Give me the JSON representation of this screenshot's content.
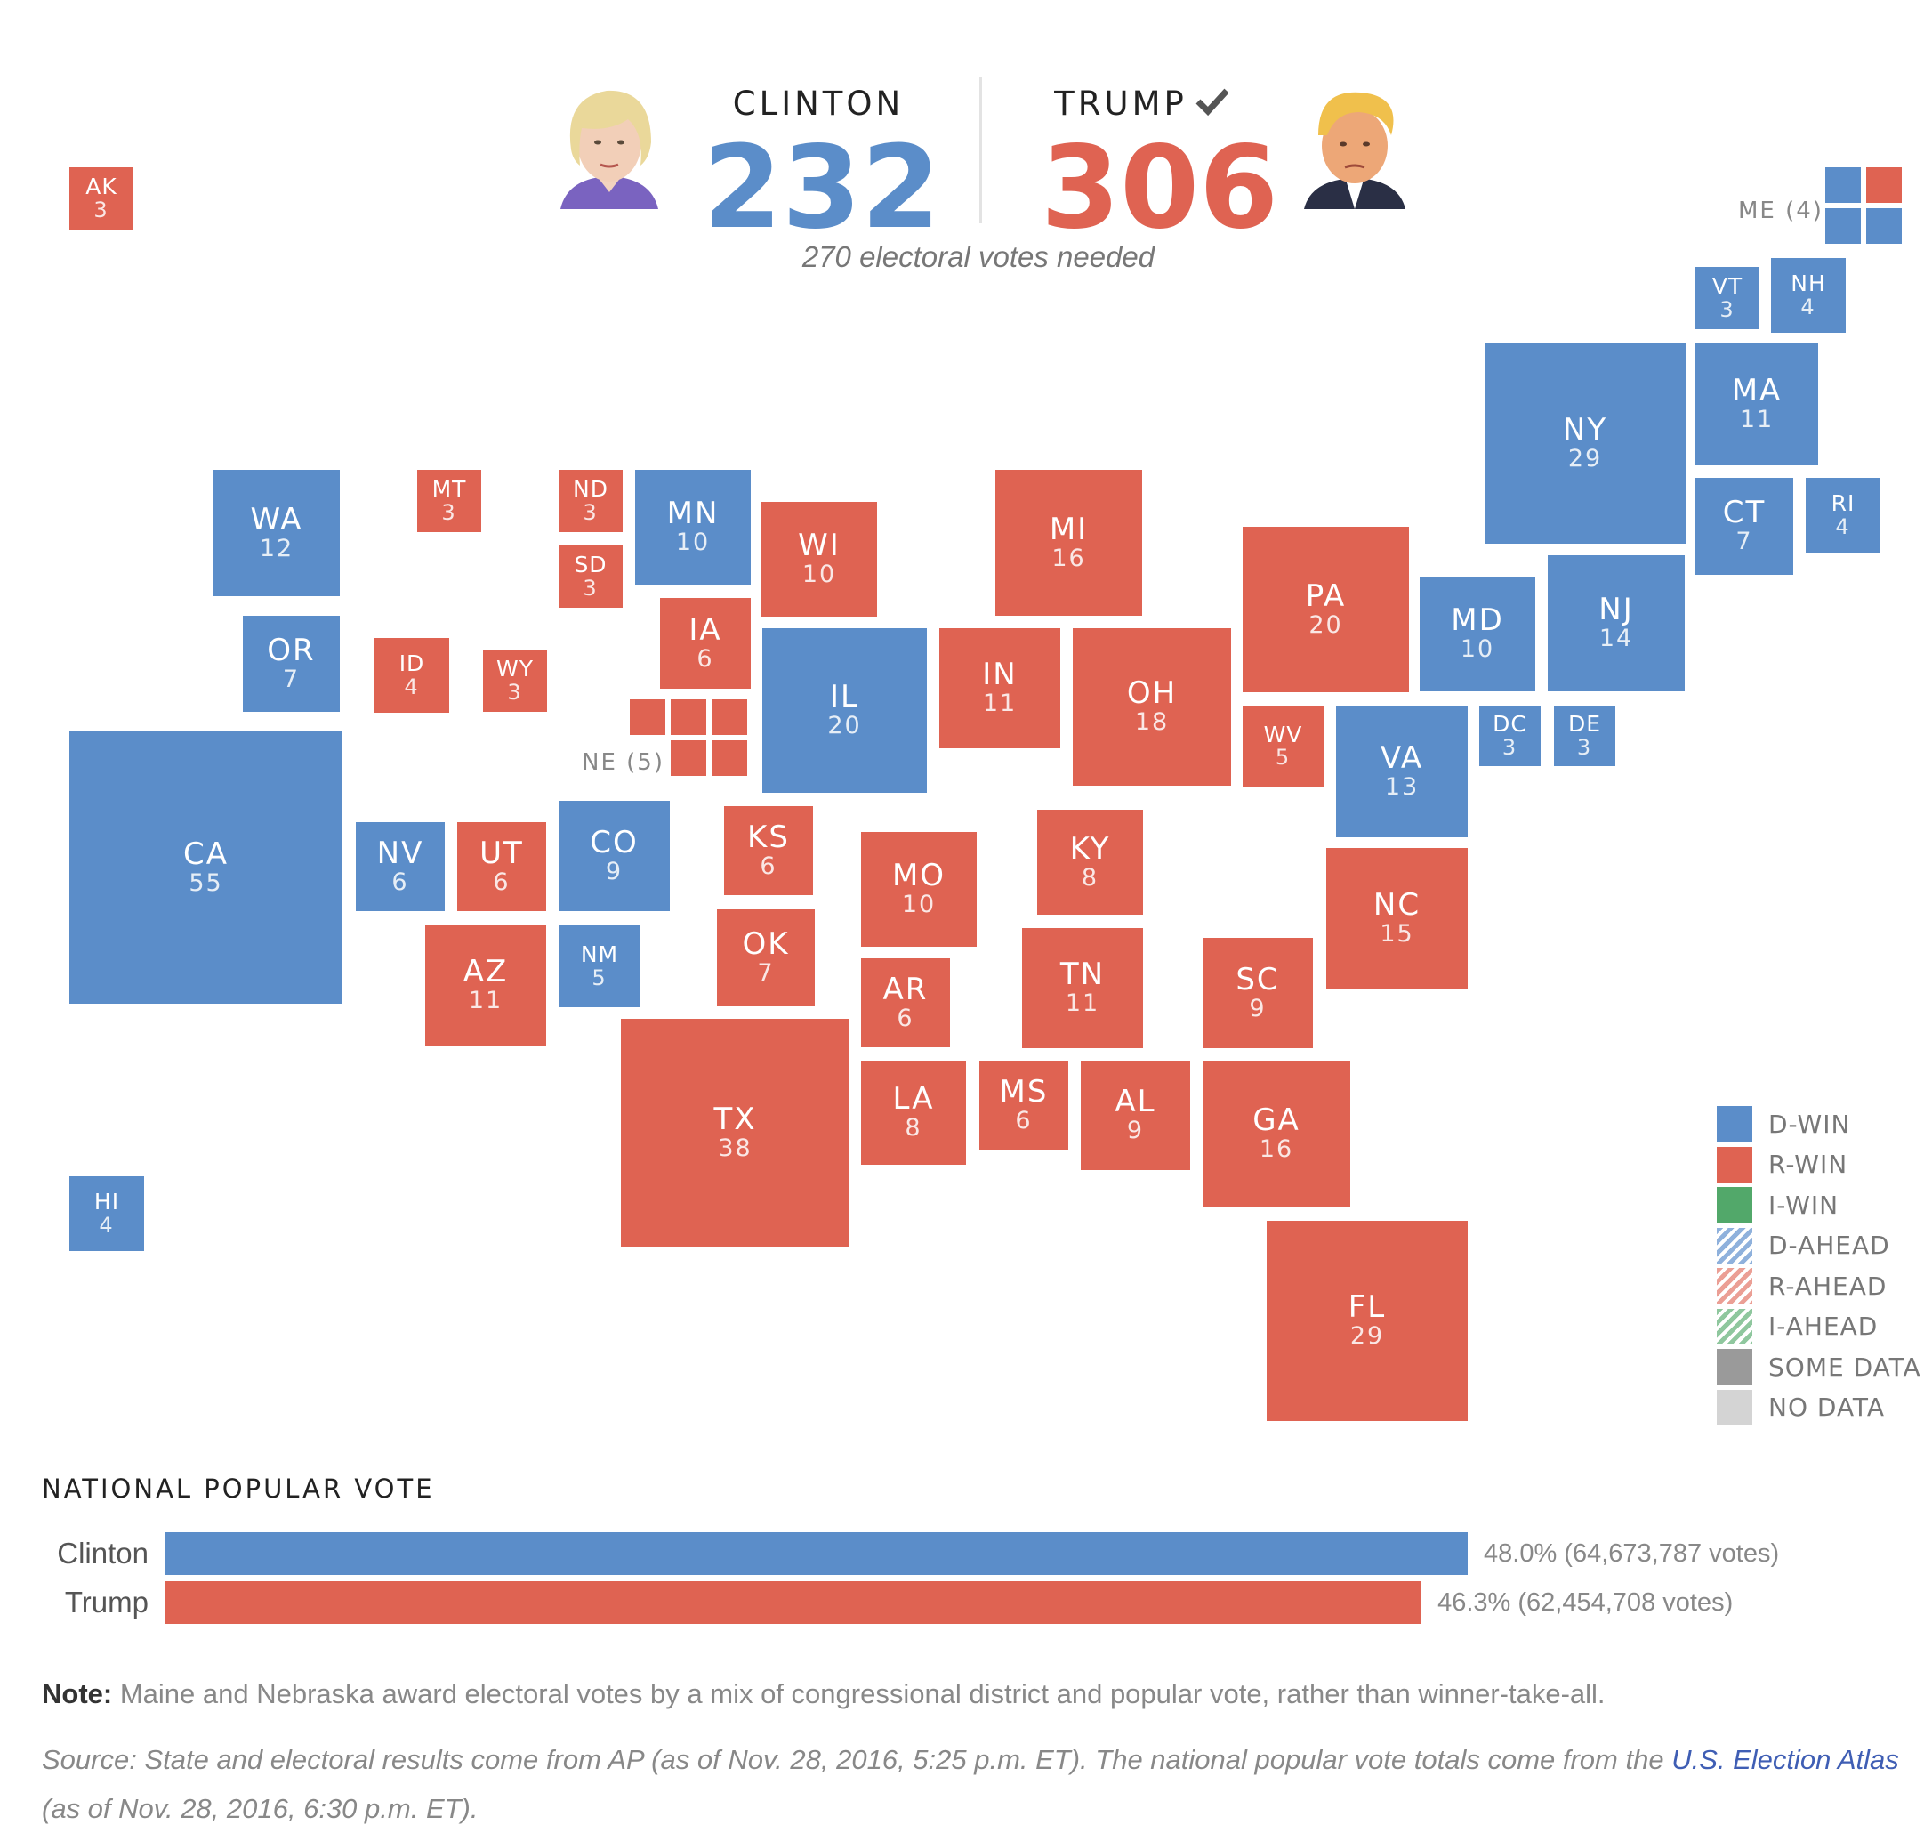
{
  "header": {
    "clinton": {
      "name": "CLINTON",
      "votes": "232"
    },
    "trump": {
      "name": "TRUMP",
      "votes": "306",
      "winner_icon": "check-icon"
    },
    "needed": "270 electoral votes needed"
  },
  "colors": {
    "d_win": "#5b8dc9",
    "r_win": "#df6352",
    "i_win": "#52a86a",
    "some_data": "#9a9a9a",
    "no_data": "#d4d4d4"
  },
  "states": [
    {
      "abbr": "AK",
      "ev": "3",
      "party": "r"
    },
    {
      "abbr": "HI",
      "ev": "4",
      "party": "d"
    },
    {
      "abbr": "WA",
      "ev": "12",
      "party": "d"
    },
    {
      "abbr": "OR",
      "ev": "7",
      "party": "d"
    },
    {
      "abbr": "CA",
      "ev": "55",
      "party": "d"
    },
    {
      "abbr": "MT",
      "ev": "3",
      "party": "r"
    },
    {
      "abbr": "ID",
      "ev": "4",
      "party": "r"
    },
    {
      "abbr": "WY",
      "ev": "3",
      "party": "r"
    },
    {
      "abbr": "NV",
      "ev": "6",
      "party": "d"
    },
    {
      "abbr": "UT",
      "ev": "6",
      "party": "r"
    },
    {
      "abbr": "AZ",
      "ev": "11",
      "party": "r"
    },
    {
      "abbr": "CO",
      "ev": "9",
      "party": "d"
    },
    {
      "abbr": "NM",
      "ev": "5",
      "party": "d"
    },
    {
      "abbr": "ND",
      "ev": "3",
      "party": "r"
    },
    {
      "abbr": "SD",
      "ev": "3",
      "party": "r"
    },
    {
      "abbr": "MN",
      "ev": "10",
      "party": "d"
    },
    {
      "abbr": "IA",
      "ev": "6",
      "party": "r"
    },
    {
      "abbr": "KS",
      "ev": "6",
      "party": "r"
    },
    {
      "abbr": "OK",
      "ev": "7",
      "party": "r"
    },
    {
      "abbr": "TX",
      "ev": "38",
      "party": "r"
    },
    {
      "abbr": "WI",
      "ev": "10",
      "party": "r"
    },
    {
      "abbr": "IL",
      "ev": "20",
      "party": "d"
    },
    {
      "abbr": "MO",
      "ev": "10",
      "party": "r"
    },
    {
      "abbr": "AR",
      "ev": "6",
      "party": "r"
    },
    {
      "abbr": "LA",
      "ev": "8",
      "party": "r"
    },
    {
      "abbr": "MI",
      "ev": "16",
      "party": "r"
    },
    {
      "abbr": "IN",
      "ev": "11",
      "party": "r"
    },
    {
      "abbr": "OH",
      "ev": "18",
      "party": "r"
    },
    {
      "abbr": "KY",
      "ev": "8",
      "party": "r"
    },
    {
      "abbr": "TN",
      "ev": "11",
      "party": "r"
    },
    {
      "abbr": "MS",
      "ev": "6",
      "party": "r"
    },
    {
      "abbr": "AL",
      "ev": "9",
      "party": "r"
    },
    {
      "abbr": "PA",
      "ev": "20",
      "party": "r"
    },
    {
      "abbr": "WV",
      "ev": "5",
      "party": "r"
    },
    {
      "abbr": "VA",
      "ev": "13",
      "party": "d"
    },
    {
      "abbr": "NC",
      "ev": "15",
      "party": "r"
    },
    {
      "abbr": "SC",
      "ev": "9",
      "party": "r"
    },
    {
      "abbr": "GA",
      "ev": "16",
      "party": "r"
    },
    {
      "abbr": "FL",
      "ev": "29",
      "party": "r"
    },
    {
      "abbr": "MD",
      "ev": "10",
      "party": "d"
    },
    {
      "abbr": "DC",
      "ev": "3",
      "party": "d"
    },
    {
      "abbr": "DE",
      "ev": "3",
      "party": "d"
    },
    {
      "abbr": "NJ",
      "ev": "14",
      "party": "d"
    },
    {
      "abbr": "NY",
      "ev": "29",
      "party": "d"
    },
    {
      "abbr": "VT",
      "ev": "3",
      "party": "d"
    },
    {
      "abbr": "NH",
      "ev": "4",
      "party": "d"
    },
    {
      "abbr": "MA",
      "ev": "11",
      "party": "d"
    },
    {
      "abbr": "CT",
      "ev": "7",
      "party": "d"
    },
    {
      "abbr": "RI",
      "ev": "4",
      "party": "d"
    }
  ],
  "split_states": {
    "ne": {
      "label": "NE (5)",
      "votes": [
        "r",
        "r",
        "r",
        "r",
        "r"
      ]
    },
    "me": {
      "label": "ME (4)",
      "votes": [
        "d",
        "r",
        "d",
        "d"
      ]
    }
  },
  "legend": [
    {
      "label": "D-WIN",
      "swatch": "d_win"
    },
    {
      "label": "R-WIN",
      "swatch": "r_win"
    },
    {
      "label": "I-WIN",
      "swatch": "i_win"
    },
    {
      "label": "D-AHEAD",
      "swatch": "d_ahead"
    },
    {
      "label": "R-AHEAD",
      "swatch": "r_ahead"
    },
    {
      "label": "I-AHEAD",
      "swatch": "i_ahead"
    },
    {
      "label": "SOME DATA",
      "swatch": "some_data"
    },
    {
      "label": "NO DATA",
      "swatch": "no_data"
    }
  ],
  "popular_vote": {
    "title": "NATIONAL POPULAR VOTE",
    "rows": [
      {
        "name": "Clinton",
        "share": 48.0,
        "value_text": "48.0% (64,673,787 votes)",
        "party": "d"
      },
      {
        "name": "Trump",
        "share": 46.3,
        "value_text": "46.3% (62,454,708 votes)",
        "party": "r"
      }
    ]
  },
  "note": {
    "label": "Note:",
    "text": " Maine and Nebraska award electoral votes by a mix of congressional district and popular vote, rather than winner-take-all."
  },
  "source": {
    "text_before": "Source: State and electoral results come from AP (as of Nov. 28, 2016, 5:25 p.m. ET). The national popular vote totals come from the ",
    "link_text": "U.S. Election Atlas",
    "text_after": " (as of Nov. 28, 2016, 6:30 p.m. ET)."
  }
}
